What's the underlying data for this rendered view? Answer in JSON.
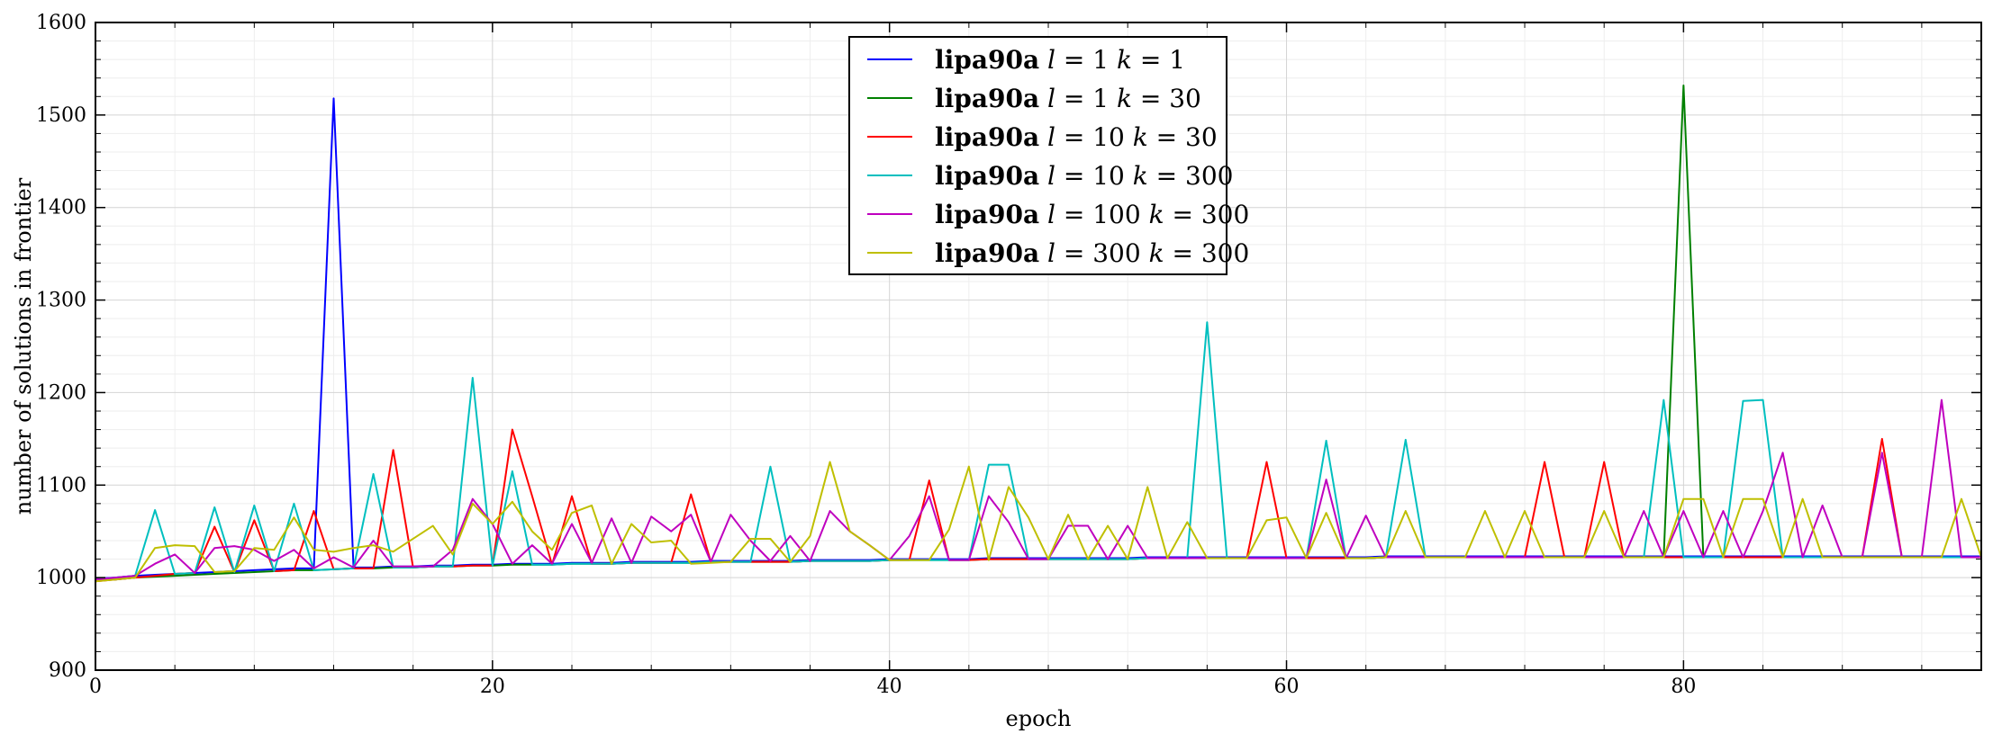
{
  "chart_data": {
    "type": "line",
    "xlabel": "epoch",
    "ylabel": "number of solutions in frontier",
    "xlim": [
      0,
      95
    ],
    "ylim": [
      900,
      1600
    ],
    "xticks": [
      0,
      20,
      40,
      60,
      80
    ],
    "yticks": [
      900,
      1000,
      1100,
      1200,
      1300,
      1400,
      1500,
      1600
    ],
    "grid": true,
    "legend_position": "top-center",
    "series": [
      {
        "name": "lipa90a l = 1 k = 1",
        "name_parts": [
          "lipa90a",
          "l",
          "1",
          "k",
          "1"
        ],
        "color": "#0000ff",
        "x": [
          0,
          1,
          2,
          3,
          4,
          5,
          6,
          7,
          8,
          9,
          10,
          11,
          12,
          13,
          14,
          15,
          16,
          17,
          18,
          19,
          20,
          21,
          22,
          23,
          24,
          25,
          26,
          27,
          28,
          29,
          30,
          31,
          32,
          33,
          34,
          35,
          36,
          37,
          38,
          39,
          40,
          41,
          42,
          43,
          44,
          45,
          46,
          47,
          48,
          49,
          50,
          51,
          52,
          53,
          54,
          55,
          56,
          57,
          58,
          59,
          60,
          61,
          62,
          63,
          64,
          65,
          66,
          67,
          68,
          69,
          70,
          71,
          72,
          73,
          74,
          75,
          76,
          77,
          78,
          79,
          80,
          81,
          82,
          83,
          84,
          85,
          86,
          87,
          88,
          89,
          90,
          91,
          92,
          93,
          94,
          95
        ],
        "y": [
          999,
          1000,
          1002,
          1003,
          1004,
          1005,
          1006,
          1007,
          1008,
          1009,
          1010,
          1010,
          1518,
          1011,
          1011,
          1012,
          1012,
          1013,
          1013,
          1014,
          1014,
          1015,
          1015,
          1015,
          1016,
          1016,
          1016,
          1017,
          1017,
          1017,
          1017,
          1018,
          1018,
          1018,
          1018,
          1018,
          1019,
          1019,
          1019,
          1019,
          1020,
          1020,
          1020,
          1020,
          1020,
          1021,
          1021,
          1021,
          1021,
          1021,
          1021,
          1021,
          1021,
          1022,
          1022,
          1022,
          1022,
          1022,
          1022,
          1022,
          1022,
          1022,
          1022,
          1022,
          1022,
          1023,
          1023,
          1023,
          1023,
          1023,
          1023,
          1023,
          1023,
          1023,
          1023,
          1023,
          1023,
          1023,
          1023,
          1023,
          1023,
          1023,
          1023,
          1023,
          1023,
          1023,
          1023,
          1023,
          1023,
          1023,
          1023,
          1023,
          1023,
          1023,
          1023,
          1023
        ]
      },
      {
        "name": "lipa90a l = 1 k = 30",
        "name_parts": [
          "lipa90a",
          "l",
          "1",
          "k",
          "30"
        ],
        "color": "#008000",
        "x": [
          0,
          1,
          2,
          3,
          4,
          5,
          6,
          7,
          8,
          9,
          10,
          11,
          12,
          13,
          14,
          15,
          16,
          17,
          18,
          19,
          20,
          21,
          22,
          23,
          24,
          25,
          26,
          27,
          28,
          29,
          30,
          31,
          32,
          33,
          34,
          35,
          36,
          37,
          38,
          39,
          40,
          41,
          42,
          43,
          44,
          45,
          46,
          47,
          48,
          49,
          50,
          51,
          52,
          53,
          54,
          55,
          56,
          57,
          58,
          59,
          60,
          61,
          62,
          63,
          64,
          65,
          66,
          67,
          68,
          69,
          70,
          71,
          72,
          73,
          74,
          75,
          76,
          77,
          78,
          79,
          80,
          81,
          82,
          83,
          84,
          85,
          86,
          87,
          88,
          89,
          90,
          91,
          92,
          93,
          94,
          95
        ],
        "y": [
          997,
          998,
          1000,
          1001,
          1002,
          1003,
          1004,
          1005,
          1006,
          1007,
          1008,
          1008,
          1009,
          1010,
          1010,
          1011,
          1011,
          1012,
          1012,
          1013,
          1013,
          1014,
          1014,
          1014,
          1015,
          1015,
          1015,
          1016,
          1016,
          1016,
          1016,
          1017,
          1017,
          1017,
          1017,
          1017,
          1018,
          1018,
          1018,
          1018,
          1019,
          1019,
          1019,
          1019,
          1019,
          1020,
          1020,
          1020,
          1020,
          1020,
          1020,
          1020,
          1020,
          1021,
          1021,
          1021,
          1021,
          1021,
          1021,
          1021,
          1021,
          1021,
          1021,
          1021,
          1021,
          1022,
          1022,
          1022,
          1022,
          1022,
          1022,
          1022,
          1022,
          1022,
          1022,
          1022,
          1022,
          1022,
          1022,
          1022,
          1532,
          1022,
          1022,
          1022,
          1022,
          1022,
          1022,
          1022,
          1022,
          1022,
          1022,
          1022,
          1022,
          1022,
          1022,
          1022
        ]
      },
      {
        "name": "lipa90a l = 10 k = 30",
        "name_parts": [
          "lipa90a",
          "l",
          "10",
          "k",
          "30"
        ],
        "color": "#ff0000",
        "x": [
          0,
          1,
          2,
          3,
          4,
          5,
          6,
          7,
          8,
          9,
          10,
          11,
          12,
          13,
          14,
          15,
          16,
          17,
          18,
          19,
          20,
          21,
          22,
          23,
          24,
          25,
          26,
          27,
          28,
          29,
          30,
          31,
          32,
          33,
          34,
          35,
          36,
          37,
          38,
          39,
          40,
          41,
          42,
          43,
          44,
          45,
          46,
          47,
          48,
          49,
          50,
          51,
          52,
          53,
          54,
          55,
          56,
          57,
          58,
          59,
          60,
          61,
          62,
          63,
          64,
          65,
          66,
          67,
          68,
          69,
          70,
          71,
          72,
          73,
          74,
          75,
          76,
          77,
          78,
          79,
          80,
          81,
          82,
          83,
          84,
          85,
          86,
          87,
          88,
          89,
          90,
          91,
          92,
          93,
          94,
          95
        ],
        "y": [
          996,
          998,
          1000,
          1002,
          1004,
          1005,
          1055,
          1006,
          1062,
          1007,
          1008,
          1072,
          1009,
          1010,
          1010,
          1138,
          1011,
          1012,
          1012,
          1013,
          1013,
          1160,
          1088,
          1014,
          1088,
          1015,
          1015,
          1016,
          1016,
          1016,
          1090,
          1017,
          1017,
          1017,
          1017,
          1017,
          1018,
          1018,
          1018,
          1018,
          1019,
          1019,
          1105,
          1019,
          1019,
          1020,
          1020,
          1020,
          1020,
          1020,
          1020,
          1020,
          1020,
          1021,
          1021,
          1021,
          1021,
          1021,
          1021,
          1125,
          1021,
          1021,
          1021,
          1021,
          1021,
          1022,
          1022,
          1022,
          1022,
          1022,
          1022,
          1022,
          1022,
          1125,
          1022,
          1022,
          1125,
          1022,
          1022,
          1022,
          1022,
          1022,
          1022,
          1022,
          1022,
          1022,
          1022,
          1022,
          1022,
          1022,
          1150,
          1022,
          1022,
          1022,
          1022,
          1022
        ]
      },
      {
        "name": "lipa90a l = 10 k = 300",
        "name_parts": [
          "lipa90a",
          "l",
          "10",
          "k",
          "300"
        ],
        "color": "#00bfbf",
        "x": [
          0,
          1,
          2,
          3,
          4,
          5,
          6,
          7,
          8,
          9,
          10,
          11,
          12,
          13,
          14,
          15,
          16,
          17,
          18,
          19,
          20,
          21,
          22,
          23,
          24,
          25,
          26,
          27,
          28,
          29,
          30,
          31,
          32,
          33,
          34,
          35,
          36,
          37,
          38,
          39,
          40,
          41,
          42,
          43,
          44,
          45,
          46,
          47,
          48,
          49,
          50,
          51,
          52,
          53,
          54,
          55,
          56,
          57,
          58,
          59,
          60,
          61,
          62,
          63,
          64,
          65,
          66,
          67,
          68,
          69,
          70,
          71,
          72,
          73,
          74,
          75,
          76,
          77,
          78,
          79,
          80,
          81,
          82,
          83,
          84,
          85,
          86,
          87,
          88,
          89,
          90,
          91,
          92,
          93,
          94,
          95
        ],
        "y": [
          998,
          1000,
          1002,
          1073,
          1004,
          1005,
          1076,
          1006,
          1078,
          1007,
          1080,
          1008,
          1009,
          1010,
          1112,
          1011,
          1011,
          1012,
          1012,
          1216,
          1013,
          1115,
          1014,
          1014,
          1015,
          1015,
          1015,
          1016,
          1016,
          1016,
          1016,
          1017,
          1017,
          1017,
          1120,
          1017,
          1018,
          1018,
          1018,
          1018,
          1019,
          1019,
          1019,
          1019,
          1019,
          1122,
          1122,
          1020,
          1020,
          1020,
          1020,
          1020,
          1020,
          1021,
          1021,
          1021,
          1276,
          1021,
          1021,
          1021,
          1021,
          1021,
          1148,
          1021,
          1021,
          1022,
          1149,
          1022,
          1022,
          1022,
          1022,
          1022,
          1022,
          1022,
          1022,
          1022,
          1022,
          1022,
          1022,
          1192,
          1022,
          1022,
          1022,
          1191,
          1192,
          1022,
          1022,
          1022,
          1022,
          1022,
          1022,
          1022,
          1022,
          1022,
          1022,
          1022
        ]
      },
      {
        "name": "lipa90a l = 100 k = 300",
        "name_parts": [
          "lipa90a",
          "l",
          "100",
          "k",
          "300"
        ],
        "color": "#bf00bf",
        "x": [
          0,
          1,
          2,
          3,
          4,
          5,
          6,
          7,
          8,
          9,
          10,
          11,
          12,
          13,
          14,
          15,
          16,
          17,
          18,
          19,
          20,
          21,
          22,
          23,
          24,
          25,
          26,
          27,
          28,
          29,
          30,
          31,
          32,
          33,
          34,
          35,
          36,
          37,
          38,
          39,
          40,
          41,
          42,
          43,
          44,
          45,
          46,
          47,
          48,
          49,
          50,
          51,
          52,
          53,
          54,
          55,
          56,
          57,
          58,
          59,
          60,
          61,
          62,
          63,
          64,
          65,
          66,
          67,
          68,
          69,
          70,
          71,
          72,
          73,
          74,
          75,
          76,
          77,
          78,
          79,
          80,
          81,
          82,
          83,
          84,
          85,
          86,
          87,
          88,
          89,
          90,
          91,
          92,
          93,
          94,
          95
        ],
        "y": [
          998,
          1000,
          1002,
          1015,
          1025,
          1005,
          1032,
          1034,
          1030,
          1018,
          1030,
          1010,
          1022,
          1011,
          1040,
          1012,
          1012,
          1012,
          1030,
          1085,
          1058,
          1015,
          1035,
          1015,
          1058,
          1016,
          1064,
          1016,
          1066,
          1050,
          1068,
          1017,
          1068,
          1040,
          1018,
          1045,
          1018,
          1072,
          1050,
          1035,
          1019,
          1045,
          1088,
          1019,
          1019,
          1088,
          1060,
          1020,
          1020,
          1056,
          1056,
          1020,
          1056,
          1021,
          1021,
          1021,
          1021,
          1021,
          1021,
          1021,
          1021,
          1021,
          1106,
          1021,
          1067,
          1022,
          1022,
          1022,
          1022,
          1022,
          1022,
          1022,
          1022,
          1022,
          1022,
          1022,
          1022,
          1022,
          1072,
          1022,
          1072,
          1022,
          1072,
          1022,
          1072,
          1135,
          1022,
          1078,
          1022,
          1022,
          1135,
          1022,
          1022,
          1192,
          1022,
          1022
        ]
      },
      {
        "name": "lipa90a l = 300 k = 300",
        "name_parts": [
          "lipa90a",
          "l",
          "300",
          "k",
          "300"
        ],
        "color": "#bfbf00",
        "x": [
          0,
          1,
          2,
          3,
          4,
          5,
          6,
          7,
          8,
          9,
          10,
          11,
          12,
          13,
          14,
          15,
          16,
          17,
          18,
          19,
          20,
          21,
          22,
          23,
          24,
          25,
          26,
          27,
          28,
          29,
          30,
          31,
          32,
          33,
          34,
          35,
          36,
          37,
          38,
          39,
          40,
          41,
          42,
          43,
          44,
          45,
          46,
          47,
          48,
          49,
          50,
          51,
          52,
          53,
          54,
          55,
          56,
          57,
          58,
          59,
          60,
          61,
          62,
          63,
          64,
          65,
          66,
          67,
          68,
          69,
          70,
          71,
          72,
          73,
          74,
          75,
          76,
          77,
          78,
          79,
          80,
          81,
          82,
          83,
          84,
          85,
          86,
          87,
          88,
          89,
          90,
          91,
          92,
          93,
          94,
          95
        ],
        "y": [
          996,
          998,
          1000,
          1032,
          1035,
          1034,
          1006,
          1007,
          1032,
          1030,
          1065,
          1030,
          1028,
          1032,
          1035,
          1028,
          1042,
          1056,
          1025,
          1080,
          1058,
          1082,
          1050,
          1030,
          1070,
          1078,
          1015,
          1058,
          1038,
          1040,
          1015,
          1016,
          1017,
          1042,
          1042,
          1017,
          1045,
          1125,
          1050,
          1035,
          1019,
          1019,
          1019,
          1052,
          1120,
          1019,
          1098,
          1065,
          1020,
          1068,
          1020,
          1056,
          1020,
          1098,
          1021,
          1060,
          1021,
          1021,
          1021,
          1062,
          1065,
          1021,
          1070,
          1021,
          1021,
          1022,
          1072,
          1022,
          1022,
          1022,
          1072,
          1022,
          1072,
          1022,
          1022,
          1022,
          1072,
          1022,
          1022,
          1022,
          1085,
          1085,
          1022,
          1085,
          1085,
          1022,
          1085,
          1022,
          1022,
          1022,
          1022,
          1022,
          1022,
          1022,
          1085,
          1022
        ]
      }
    ]
  }
}
